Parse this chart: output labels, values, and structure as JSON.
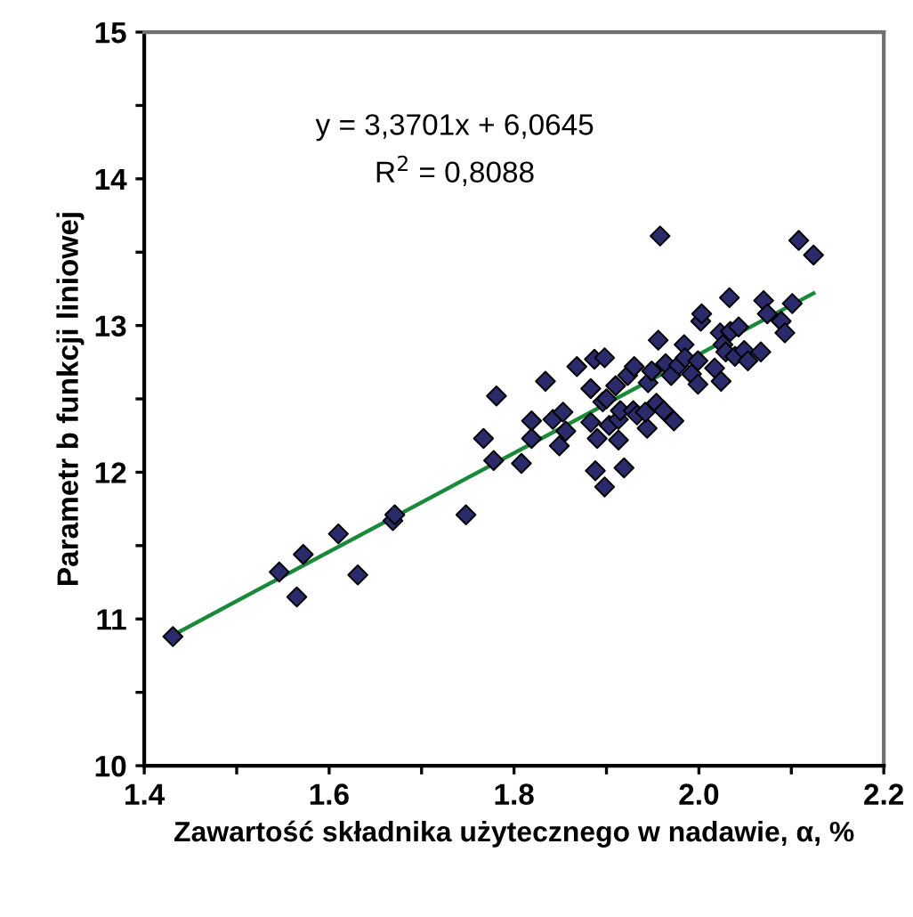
{
  "chart_data": {
    "type": "scatter",
    "xlabel": "Zawartość składnika użytecznego w nadawie, α, %",
    "ylabel": "Parametr b funkcji liniowej",
    "annotations": [
      "y = 3,3701x + 6,0645",
      "R$^{2}$ = 0,8088"
    ],
    "xlim": [
      1.4,
      2.2
    ],
    "ylim": [
      10,
      15
    ],
    "xticks": [
      1.4,
      {
        "value": 1.5,
        "label": null
      },
      1.6,
      {
        "value": 1.7,
        "label": null
      },
      1.8,
      {
        "value": 1.9,
        "label": null
      },
      {
        "value": 2.0,
        "label": "2.0"
      },
      {
        "value": 2.1,
        "label": null
      },
      2.2
    ],
    "yticks": [
      10,
      {
        "value": 10.5,
        "label": null
      },
      11,
      {
        "value": 11.5,
        "label": null
      },
      12,
      {
        "value": 12.5,
        "label": null
      },
      13,
      {
        "value": 13.5,
        "label": null
      },
      14,
      {
        "value": 14.5,
        "label": null
      },
      15
    ],
    "grid": false,
    "legend": false,
    "marker": "diamond",
    "series": [
      {
        "color": "#2b2b6b",
        "x": [
          1.431,
          1.546,
          1.565,
          1.572,
          1.61,
          1.631,
          1.669,
          1.671,
          1.748,
          1.767,
          1.778,
          1.781,
          1.808,
          1.819,
          1.819,
          1.834,
          1.842,
          1.853,
          1.856,
          1.849,
          1.868,
          1.883,
          1.887,
          1.898,
          1.883,
          1.89,
          1.896,
          1.9,
          1.888,
          1.898,
          1.903,
          1.91,
          1.913,
          1.915,
          1.913,
          1.919,
          1.923,
          1.93,
          1.929,
          1.933,
          1.944,
          1.942,
          1.945,
          1.949,
          1.956,
          1.954,
          1.962,
          1.964,
          1.958,
          1.973,
          1.97,
          1.978,
          1.984,
          1.985,
          1.992,
          1.999,
          1.999,
          2.002,
          2.003,
          2.017,
          2.024,
          2.023,
          2.026,
          2.033,
          2.034,
          2.029,
          2.039,
          2.043,
          2.049,
          2.053,
          2.067,
          2.07,
          2.074,
          2.089,
          2.093,
          2.101,
          2.108,
          2.124
        ],
        "values": [
          10.88,
          11.32,
          11.15,
          11.44,
          11.58,
          11.3,
          11.67,
          11.71,
          11.71,
          12.23,
          12.08,
          12.52,
          12.06,
          12.35,
          12.23,
          12.62,
          12.36,
          12.41,
          12.28,
          12.18,
          12.72,
          12.57,
          12.77,
          12.78,
          12.34,
          12.23,
          12.48,
          12.5,
          12.01,
          11.9,
          12.32,
          12.59,
          12.36,
          12.42,
          12.22,
          12.03,
          12.66,
          12.72,
          12.42,
          12.39,
          12.3,
          12.41,
          12.61,
          12.69,
          12.9,
          12.47,
          12.42,
          12.74,
          13.61,
          12.35,
          12.66,
          12.73,
          12.87,
          12.78,
          12.67,
          12.6,
          12.76,
          13.03,
          13.08,
          12.71,
          12.62,
          12.95,
          12.87,
          13.19,
          12.96,
          12.82,
          12.79,
          12.99,
          12.83,
          12.76,
          12.82,
          13.17,
          13.08,
          13.03,
          12.95,
          13.15,
          13.58,
          13.48
        ]
      },
      {
        "type": "line",
        "color": "#1a8a3a",
        "line_style": "solid",
        "marker": "none",
        "x": [
          1.431,
          2.124
        ],
        "values": [
          10.89,
          13.22
        ]
      }
    ]
  }
}
